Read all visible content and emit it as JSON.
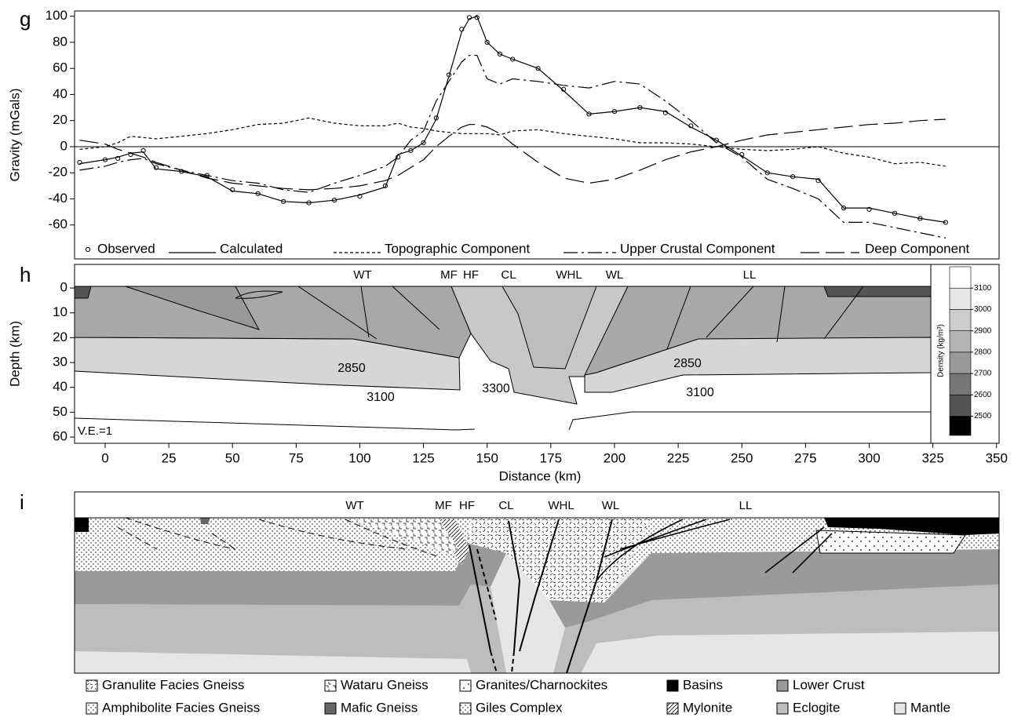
{
  "panels": [
    "g",
    "h",
    "i"
  ],
  "chart_data": [
    {
      "type": "line",
      "ylabel": "Gravity (mGals)",
      "x": [
        -10,
        0,
        5,
        10,
        15,
        20,
        30,
        40,
        50,
        60,
        70,
        80,
        90,
        100,
        110,
        115,
        120,
        125,
        130,
        135,
        140,
        143,
        146,
        150,
        155,
        160,
        170,
        180,
        190,
        200,
        210,
        220,
        230,
        240,
        250,
        260,
        270,
        280,
        290,
        300,
        310,
        320,
        330
      ],
      "series": [
        {
          "name": "Observed",
          "color": "#000000",
          "marker": "circle",
          "values": [
            -12,
            -10,
            -9,
            -6,
            -3,
            -16,
            -19,
            -22,
            -33,
            -36,
            -42,
            -43,
            -41,
            -38,
            -30,
            -8,
            -3,
            3,
            22,
            55,
            90,
            99,
            99,
            80,
            71,
            67,
            60,
            44,
            25,
            27,
            30,
            26,
            16,
            5,
            -6,
            -20,
            -23,
            -26,
            -47,
            -48,
            -51,
            -55,
            -58
          ]
        },
        {
          "name": "Calculated",
          "color": "#000000",
          "values": [
            -13,
            -10,
            -8,
            -5,
            -4,
            -17,
            -19,
            -23,
            -34,
            -36,
            -42,
            -43,
            -41,
            -37,
            -31,
            -6,
            -3,
            3,
            21,
            54,
            88,
            98,
            100,
            80,
            71,
            67,
            60,
            43,
            25,
            27,
            30,
            27,
            15,
            5,
            -7,
            -20,
            -23,
            -25,
            -47,
            -47,
            -51,
            -55,
            -58
          ]
        },
        {
          "name": "Topographic Component",
          "color": "#000000",
          "dash": "4 3",
          "values": [
            -2,
            0,
            3,
            8,
            7,
            6,
            8,
            10,
            13,
            17,
            18,
            22,
            18,
            16,
            16,
            18,
            15,
            14,
            12,
            11,
            10,
            10,
            10,
            10,
            9,
            12,
            13,
            10,
            8,
            6,
            3,
            3,
            2,
            0,
            -2,
            -3,
            -2,
            0,
            -5,
            -8,
            -13,
            -12,
            -15
          ]
        },
        {
          "name": "Upper Crustal Component",
          "color": "#000000",
          "dash": "18 5 3 5",
          "values": [
            -18,
            -15,
            -12,
            -10,
            -9,
            -13,
            -18,
            -22,
            -26,
            -28,
            -33,
            -35,
            -28,
            -22,
            -15,
            -8,
            5,
            12,
            35,
            50,
            65,
            70,
            70,
            52,
            48,
            52,
            50,
            47,
            45,
            50,
            48,
            35,
            20,
            3,
            -8,
            -25,
            -32,
            -40,
            -58,
            -58,
            -62,
            -66,
            -70
          ]
        },
        {
          "name": "Deep Component",
          "color": "#000000",
          "dash": "24 8",
          "values": [
            5,
            2,
            -2,
            -5,
            -8,
            -12,
            -18,
            -24,
            -28,
            -30,
            -32,
            -33,
            -32,
            -30,
            -26,
            -22,
            -16,
            -10,
            0,
            8,
            15,
            17,
            17,
            15,
            10,
            2,
            -12,
            -24,
            -28,
            -25,
            -18,
            -10,
            -4,
            0,
            5,
            9,
            11,
            13,
            15,
            17,
            18,
            20,
            21
          ]
        }
      ],
      "xlim": [
        -12,
        351
      ],
      "ylim": [
        -86,
        104
      ],
      "yticks": [
        -60,
        -40,
        -20,
        0,
        20,
        40,
        60,
        80,
        100
      ],
      "zero_line": true
    },
    {
      "type": "section",
      "ylabel": "Depth (km)",
      "xlabel": "Distance (km)",
      "xlim": [
        -12,
        351
      ],
      "xticks": [
        0,
        25,
        50,
        75,
        100,
        125,
        150,
        175,
        200,
        225,
        250,
        275,
        300,
        325,
        350
      ],
      "ylim": [
        -9.5,
        62.5
      ],
      "yticks": [
        0,
        10,
        20,
        30,
        40,
        50,
        60
      ],
      "labels": [
        "WT",
        "MF",
        "HF",
        "CL",
        "WHL",
        "WL",
        "LL"
      ],
      "density_labels": [
        2850,
        3100,
        3300,
        2850,
        3100
      ],
      "note": "V.E.=1",
      "colorbar": {
        "label": "Density (kg/m³)",
        "ticks": [
          2500,
          2600,
          2700,
          2800,
          2900,
          3000,
          3100
        ],
        "lim": [
          2410,
          3200
        ],
        "colors": [
          "#000000",
          "#555555",
          "#777777",
          "#999999",
          "#b3b3b3",
          "#cdcdcd",
          "#e6e6e6",
          "#ffffff"
        ]
      }
    }
  ],
  "section_i": {
    "labels": [
      "WT",
      "MF",
      "HF",
      "CL",
      "WHL",
      "WL",
      "LL"
    ],
    "legend": [
      "Granulite Facies Gneiss",
      "Wataru Gneiss",
      "Granites/Charnockites",
      "Basins",
      "Lower Crust",
      "Amphibolite Facies Gneiss",
      "Mafic Gneiss",
      "Giles Complex",
      "Mylonite",
      "Eclogite",
      "Mantle"
    ]
  }
}
